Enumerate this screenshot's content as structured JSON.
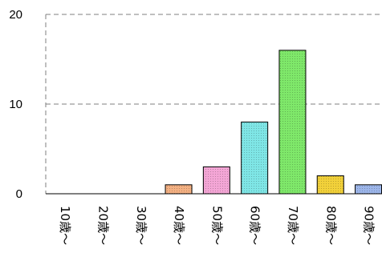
{
  "chart_data": {
    "type": "bar",
    "categories": [
      "10歳～",
      "20歳～",
      "30歳～",
      "40歳～",
      "50歳～",
      "60歳～",
      "70歳～",
      "80歳～",
      "90歳～"
    ],
    "values": [
      0,
      0,
      0,
      1,
      3,
      8,
      16,
      2,
      1
    ],
    "ylim": [
      0,
      20
    ],
    "yticks": [
      0,
      10,
      20
    ],
    "grid": true,
    "bar_colors": [
      "#bdd7ee",
      "#bdd7ee",
      "#bdd7ee",
      "#f4b183",
      "#f4a6d6",
      "#7fe6e6",
      "#7fe86a",
      "#f2d13a",
      "#9db6ea"
    ],
    "title": "",
    "xlabel": "",
    "ylabel": ""
  }
}
